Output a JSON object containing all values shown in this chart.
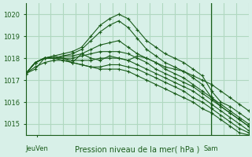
{
  "title": "Pression niveau de la mer( hPa )",
  "bg_color": "#d8f0e8",
  "grid_color": "#b0d8c0",
  "line_color": "#1a5c1a",
  "tick_label_color": "#1a5c1a",
  "ylim": [
    1014.5,
    1020.5
  ],
  "yticks": [
    1015,
    1016,
    1017,
    1018,
    1019,
    1020
  ],
  "xlabel_jeuven": "JeuVen",
  "xlabel_sam": "Sam",
  "series": [
    [
      1017.3,
      1017.8,
      1018.0,
      1018.1,
      1018.2,
      1018.3,
      1018.5,
      1019.0,
      1019.5,
      1019.8,
      1020.0,
      1019.8,
      1019.3,
      1018.8,
      1018.5,
      1018.2,
      1018.0,
      1017.8,
      1017.5,
      1017.2,
      1016.5,
      1016.0,
      1015.8,
      1015.5,
      1015.2
    ],
    [
      1017.3,
      1017.8,
      1018.0,
      1018.0,
      1018.1,
      1018.2,
      1018.4,
      1018.8,
      1019.2,
      1019.5,
      1019.7,
      1019.4,
      1018.9,
      1018.4,
      1018.1,
      1017.8,
      1017.6,
      1017.4,
      1017.1,
      1016.8,
      1016.2,
      1015.8,
      1015.5,
      1015.2,
      1014.9
    ],
    [
      1017.3,
      1017.8,
      1018.0,
      1018.0,
      1018.1,
      1018.1,
      1018.2,
      1018.4,
      1018.6,
      1018.7,
      1018.8,
      1018.5,
      1018.2,
      1018.0,
      1017.8,
      1017.5,
      1017.3,
      1017.1,
      1016.8,
      1016.5,
      1016.2,
      1015.9,
      1015.6,
      1015.3,
      1015.0
    ],
    [
      1017.3,
      1017.8,
      1018.0,
      1018.0,
      1018.0,
      1018.0,
      1018.1,
      1018.2,
      1018.3,
      1018.3,
      1018.3,
      1018.2,
      1018.0,
      1017.8,
      1017.5,
      1017.3,
      1017.1,
      1016.9,
      1016.7,
      1016.4,
      1016.1,
      1015.8,
      1015.5,
      1015.2,
      1014.9
    ],
    [
      1017.3,
      1017.8,
      1018.0,
      1018.0,
      1018.0,
      1017.9,
      1017.9,
      1017.9,
      1018.0,
      1018.0,
      1018.0,
      1017.9,
      1017.7,
      1017.5,
      1017.3,
      1017.1,
      1016.9,
      1016.7,
      1016.5,
      1016.2,
      1015.9,
      1015.6,
      1015.3,
      1015.0,
      1014.7
    ],
    [
      1017.3,
      1017.8,
      1018.0,
      1018.0,
      1017.9,
      1017.8,
      1017.7,
      1017.6,
      1017.6,
      1017.7,
      1017.7,
      1017.6,
      1017.5,
      1017.3,
      1017.1,
      1016.9,
      1016.7,
      1016.5,
      1016.2,
      1016.0,
      1015.7,
      1015.4,
      1015.1,
      1014.8,
      1014.6
    ],
    [
      1017.3,
      1017.6,
      1017.8,
      1017.9,
      1017.9,
      1017.8,
      1017.7,
      1017.6,
      1017.5,
      1017.5,
      1017.5,
      1017.4,
      1017.2,
      1017.0,
      1016.8,
      1016.6,
      1016.4,
      1016.2,
      1016.0,
      1015.7,
      1015.5,
      1015.2,
      1014.9,
      1014.6,
      1014.5
    ]
  ],
  "extra_wiggly": [
    1017.3,
    1017.5,
    1018.0,
    1018.1,
    1018.0,
    1017.8,
    1018.2,
    1018.0,
    1017.9,
    1018.1,
    1018.0,
    1017.9,
    1018.1,
    1018.0,
    1017.8,
    1017.6,
    1017.5,
    1017.4,
    1017.2,
    1017.0,
    1016.8,
    1016.5,
    1016.2,
    1015.9,
    1015.6
  ]
}
